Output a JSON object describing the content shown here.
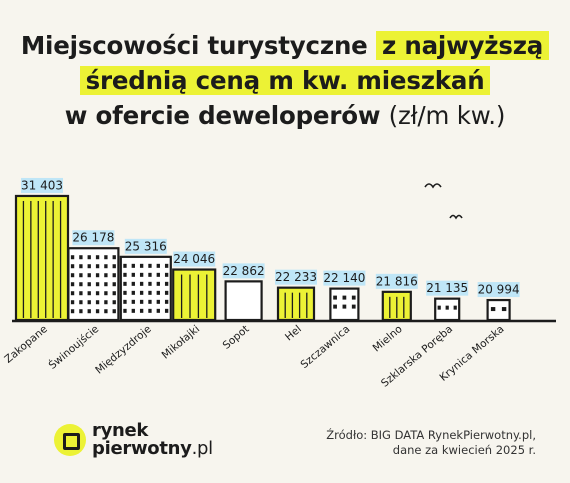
{
  "title": {
    "line1_plain": "Miejscowości turystyczne ",
    "line1_highlight": "z najwyższą",
    "line2_highlight": "średnią ceną m kw. mieszkań",
    "line3_plain": "w ofercie deweloperów ",
    "line3_unit": "(zł/m kw.)"
  },
  "chart_data": {
    "type": "bar",
    "categories": [
      "Zakopane",
      "Świnoujście",
      "Międzyzdroje",
      "Mikołajki",
      "Sopot",
      "Hel",
      "Szczawnica",
      "Mielno",
      "Szklarska Poręba",
      "Krynica Morska"
    ],
    "values": [
      31403,
      26178,
      25316,
      24046,
      22862,
      22233,
      22140,
      21816,
      21135,
      20994
    ],
    "value_labels": [
      "31 403",
      "26 178",
      "25 316",
      "24 046",
      "22 862",
      "22 233",
      "22 140",
      "21 816",
      "21 135",
      "20 994"
    ],
    "ylim": [
      19000,
      32500
    ],
    "colors": {
      "highlight": "#ecf235",
      "white": "#ffffff",
      "outline": "#1c1c1c",
      "label_bg": "#bfe6f7"
    },
    "building_fill": [
      "highlight",
      "white",
      "white",
      "highlight",
      "white",
      "highlight",
      "white",
      "highlight",
      "white",
      "white"
    ]
  },
  "logo": {
    "line1": "rynek",
    "line2_bold": "pierwotny",
    "line2_suffix": ".pl"
  },
  "source": {
    "line1": "Źródło: BIG DATA RynekPierwotny.pl,",
    "line2": "dane za kwiecień 2025 r."
  }
}
